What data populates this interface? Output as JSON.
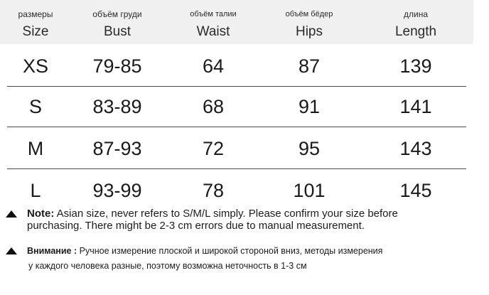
{
  "table": {
    "headers": [
      {
        "ru": "размеры",
        "en": "Size"
      },
      {
        "ru": "объём груди",
        "en": "Bust"
      },
      {
        "ru": "объём талии",
        "en": "Waist"
      },
      {
        "ru": "объём бёдер",
        "en": "Hips"
      },
      {
        "ru": "длина",
        "en": "Length"
      }
    ],
    "rows": [
      [
        "XS",
        "79-85",
        "64",
        "87",
        "139"
      ],
      [
        "S",
        "83-89",
        "68",
        "91",
        "141"
      ],
      [
        "M",
        "87-93",
        "72",
        "95",
        "143"
      ],
      [
        "L",
        "93-99",
        "78",
        "101",
        "145"
      ]
    ]
  },
  "notes": {
    "en_label": "Note:",
    "en_line1": "Asian size, never refers to S/M/L simply. Please confirm your size before",
    "en_line2": "purchasing. There might be 2-3 cm errors due to manual measurement.",
    "ru_label": "Внимание :",
    "ru_line1": "Ручное измерение плоской и широкой стороной вниз, методы измерения",
    "ru_line2": "у каждого человека разные, поэтому возможна неточность в 1-3 см"
  }
}
